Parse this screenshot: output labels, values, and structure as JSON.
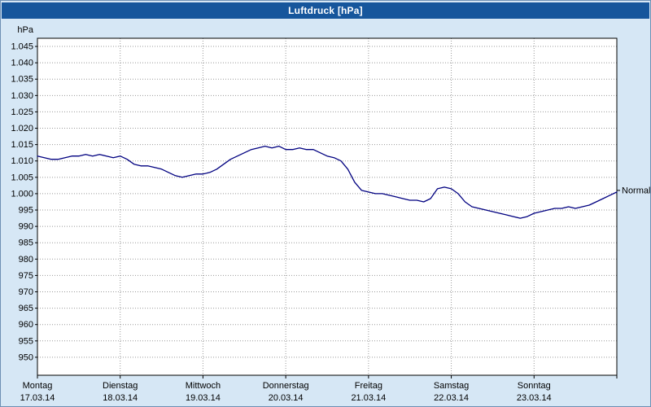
{
  "title": "Luftdruck [hPa]",
  "normal_label": "Normal",
  "colors": {
    "title_bar": "#16569c",
    "title_text": "#ffffff",
    "background": "#d6e7f5",
    "plot_background": "#ffffff",
    "grid": "#999999",
    "axis": "#000000",
    "line": "#000080",
    "text": "#000000"
  },
  "chart_data": {
    "type": "line",
    "title": "Luftdruck [hPa]",
    "xlabel": "",
    "ylabel": "hPa",
    "ylim": [
      944.5,
      1047.5
    ],
    "grid": true,
    "legend": "none",
    "ytick_step": 5,
    "ytick_values": [
      1045,
      1040,
      1035,
      1030,
      1025,
      1020,
      1015,
      1010,
      1005,
      1000,
      995,
      990,
      985,
      980,
      975,
      970,
      965,
      960,
      955,
      950
    ],
    "ytick_labels": [
      "1.045",
      "1.040",
      "1.035",
      "1.030",
      "1.025",
      "1.020",
      "1.015",
      "1.010",
      "1.005",
      "1.000",
      "995",
      "990",
      "985",
      "980",
      "975",
      "970",
      "965",
      "960",
      "955",
      "950"
    ],
    "days": [
      {
        "name": "Montag",
        "date": "17.03.14"
      },
      {
        "name": "Dienstag",
        "date": "18.03.14"
      },
      {
        "name": "Mittwoch",
        "date": "19.03.14"
      },
      {
        "name": "Donnerstag",
        "date": "20.03.14"
      },
      {
        "name": "Freitag",
        "date": "21.03.14"
      },
      {
        "name": "Samstag",
        "date": "22.03.14"
      },
      {
        "name": "Sonntag",
        "date": "23.03.14"
      }
    ],
    "normal_value": 1001,
    "series": [
      {
        "name": "Luftdruck",
        "values": [
          1011.5,
          1011,
          1010.5,
          1010.5,
          1011,
          1011.5,
          1011.5,
          1012,
          1011.5,
          1012,
          1011.5,
          1011,
          1011.5,
          1010.5,
          1009,
          1008.5,
          1008.5,
          1008,
          1007.5,
          1006.5,
          1005.5,
          1005,
          1005.5,
          1006,
          1006,
          1006.5,
          1007.5,
          1009,
          1010.5,
          1011.5,
          1012.5,
          1013.5,
          1014,
          1014.5,
          1014,
          1014.5,
          1013.5,
          1013.5,
          1014,
          1013.5,
          1013.5,
          1012.5,
          1011.5,
          1011,
          1010,
          1007.5,
          1003.5,
          1001,
          1000.5,
          1000,
          1000,
          999.5,
          999,
          998.5,
          998,
          998,
          997.5,
          998.5,
          1001.5,
          1002,
          1001.5,
          1000,
          997.5,
          996,
          995.5,
          995,
          994.5,
          994,
          993.5,
          993,
          992.5,
          993,
          994,
          994.5,
          995,
          995.5,
          995.5,
          996,
          995.5,
          996,
          996.5,
          997.5,
          998.5,
          999.5,
          1000.5
        ]
      }
    ]
  }
}
